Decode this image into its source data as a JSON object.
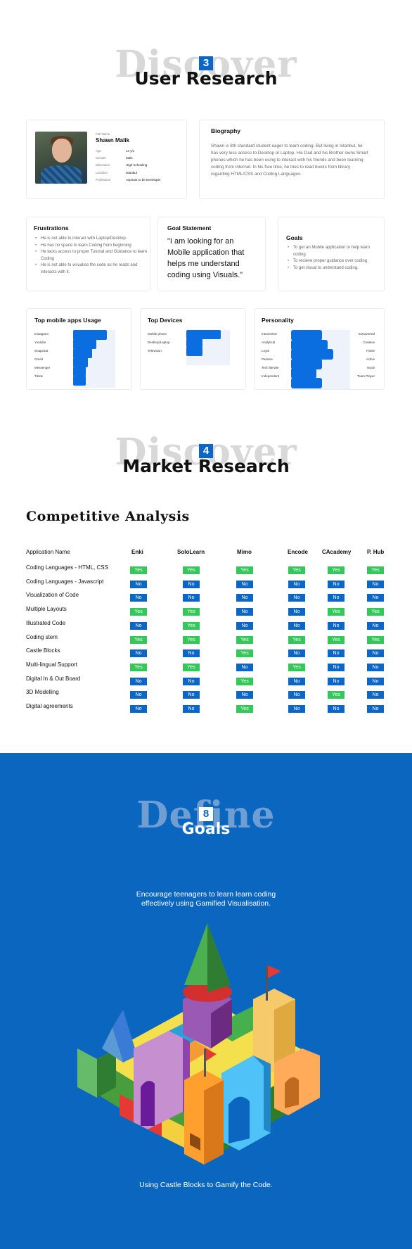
{
  "sections": {
    "discover3": {
      "big": "Discover",
      "num": "3",
      "title": "User Research"
    },
    "discover4": {
      "big": "Discover",
      "num": "4",
      "title": "Market Research"
    },
    "define8": {
      "big": "Define",
      "num": "8",
      "title": "Goals"
    }
  },
  "persona": {
    "fullname_label": "Full Name",
    "name": "Shawn  Malik",
    "fields": [
      {
        "k": "Age",
        "v": "14 y/o"
      },
      {
        "k": "Gender",
        "v": "Male"
      },
      {
        "k": "Education",
        "v": "High Schooling"
      },
      {
        "k": "Location",
        "v": "Istanbul"
      },
      {
        "k": "Profession",
        "v": "Aspirant to be Developer"
      }
    ]
  },
  "biography": {
    "title": "Biography",
    "text": "Shawn is 8th standard student eager to learn coding. But living in Istanbul, he has very less access to Desktop or Laptop. His Dad and his Brother owns Smart phones which he has been using to interact with his friends and been learning coding from Internet. In his free time, he tries to read books from library regarding HTML/CSS and Coding Languages."
  },
  "frustrations": {
    "title": "Frustrations",
    "items": [
      "He is not able to interact with Laptop/Desktop.",
      "He has no space to learn Coding from beginning",
      "He lacks access to proper Tutorial and Guidance to learn Coding",
      "He is not able to visualise the code as he reads and interacts with it."
    ]
  },
  "goal_statement": {
    "title": "Goal Statement",
    "quote": "\"I am looking for an Mobile application that helps me understand coding using Visuals.\""
  },
  "goals": {
    "title": "Goals",
    "items": [
      "To get an Mobile application to help learn coding",
      "To recieve proper guidance over coding",
      "To get visual to understand coding."
    ]
  },
  "top_apps": {
    "title": "Top mobile apps Usage",
    "labels": [
      "Instagram",
      "Youtube",
      "Snapchat",
      "Gmail",
      "Messenger",
      "Tiktok"
    ],
    "values": [
      0.8,
      0.55,
      0.45,
      0.35,
      0.3,
      0.3
    ]
  },
  "top_devices": {
    "title": "Top Devices",
    "labels": [
      "Mobile phone",
      "Desktop/Laptop",
      "Television"
    ],
    "values": [
      0.95,
      0.45,
      0.45
    ]
  },
  "personality": {
    "title": "Personality",
    "left": [
      "Introverted",
      "Analytical",
      "Loyal",
      "Passive",
      "Tech literate",
      "Independent"
    ],
    "right": [
      "Extraverted",
      "Creative",
      "Fickle",
      "Active",
      "Noob",
      "Team Player"
    ],
    "values": [
      0.55,
      0.65,
      0.75,
      0.55,
      0.45,
      0.55
    ]
  },
  "competitive": {
    "title": "Competitive Analysis",
    "columns": [
      "Application Name",
      "Enki",
      "SoloLearn",
      "Mimo",
      "Encode",
      "CAcademy",
      "P. Hub"
    ],
    "rows": [
      {
        "label": "Coding Languages  - HTML, CSS",
        "values": [
          "Yes",
          "Yes",
          "Yes",
          "Yes",
          "Yes",
          "Yes"
        ]
      },
      {
        "label": "Coding Languages  - Javascript",
        "values": [
          "No",
          "No",
          "No",
          "No",
          "No",
          "No"
        ]
      },
      {
        "label": "Visualization of Code",
        "values": [
          "No",
          "No",
          "No",
          "No",
          "No",
          "No"
        ]
      },
      {
        "label": "Multiple Layouts",
        "values": [
          "Yes",
          "Yes",
          "No",
          "No",
          "Yes",
          "Yes"
        ]
      },
      {
        "label": "Illustrated Code",
        "values": [
          "No",
          "Yes",
          "No",
          "No",
          "No",
          "No"
        ]
      },
      {
        "label": "Coding stem",
        "values": [
          "Yes",
          "Yes",
          "Yes",
          "Yes",
          "Yes",
          "Yes"
        ]
      },
      {
        "label": "Castle Blocks",
        "values": [
          "No",
          "No",
          "Yes",
          "No",
          "No",
          "No"
        ]
      },
      {
        "label": "Multi-lingual Support",
        "values": [
          "Yes",
          "Yes",
          "No",
          "Yes",
          "No",
          "No"
        ]
      },
      {
        "label": "Digital In & Out Board",
        "values": [
          "No",
          "No",
          "Yes",
          "No",
          "No",
          "No"
        ]
      },
      {
        "label": "3D Modelling",
        "values": [
          "No",
          "No",
          "No",
          "No",
          "Yes",
          "No"
        ]
      },
      {
        "label": "Digital agreements",
        "values": [
          "No",
          "No",
          "Yes",
          "No",
          "No",
          "No"
        ]
      }
    ]
  },
  "define": {
    "goal_text": "Encourage teenagers to learn learn coding effectively using Gamified Visualisation.",
    "castle_text": "Using Castle Blocks to Gamify the Code."
  },
  "colors": {
    "accent": "#0b66c8",
    "yes": "#34c759",
    "no": "#0b66c8",
    "define_bg": "#0b66c0",
    "bar": "#0b6ee0"
  }
}
